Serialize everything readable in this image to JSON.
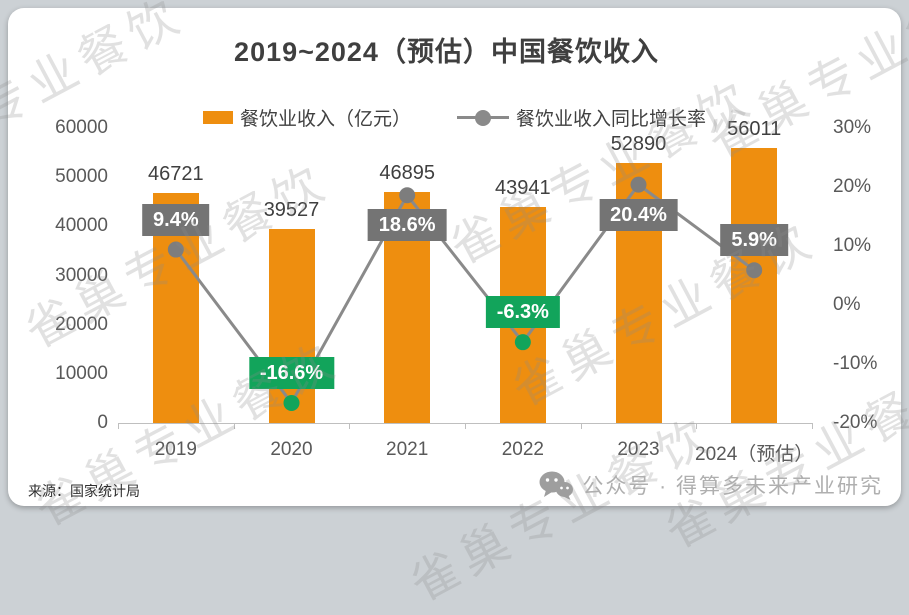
{
  "page": {
    "watermark_text": "雀巢专业餐饮",
    "source": "来源：国家统计局",
    "footer_text": "公众号 · 得算多未来产业研究"
  },
  "colors": {
    "bar": "#EE8E0F",
    "line": "#8A8A8A",
    "marker_positive": "#7D7D7D",
    "marker_negative": "#12A45B",
    "positive_label_bg": "#747474",
    "negative_label_bg": "#12A45B",
    "axis_text": "#595959",
    "title_text": "#3F3F3F"
  },
  "chart_data": {
    "type": "combo-bar-line",
    "title": "2019~2024（预估）中国餐饮收入",
    "categories": [
      "2019",
      "2020",
      "2021",
      "2022",
      "2023",
      "2024（预估）"
    ],
    "series": [
      {
        "name": "餐饮业收入（亿元）",
        "type": "bar",
        "axis": "left",
        "values": [
          46721,
          39527,
          46895,
          43941,
          52890,
          56011
        ]
      },
      {
        "name": "餐饮业收入同比增长率",
        "type": "line",
        "axis": "right",
        "values": [
          9.4,
          -16.6,
          18.6,
          -6.3,
          20.4,
          5.9
        ],
        "labels": [
          "9.4%",
          "-16.6%",
          "18.6%",
          "-6.3%",
          "20.4%",
          "5.9%"
        ]
      }
    ],
    "left_axis": {
      "min": 0,
      "max": 60000,
      "step": 10000,
      "tick_labels": [
        "60000",
        "50000",
        "40000",
        "30000",
        "20000",
        "10000",
        "0"
      ]
    },
    "right_axis": {
      "min": -20,
      "max": 30,
      "step": 10,
      "tick_labels": [
        "30%",
        "20%",
        "10%",
        "0%",
        "-10%",
        "-20%"
      ]
    },
    "legend_position": "top",
    "grid": false,
    "label_sides": [
      "above",
      "above",
      "below",
      "above",
      "below",
      "above"
    ]
  }
}
